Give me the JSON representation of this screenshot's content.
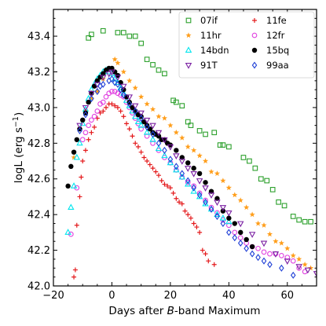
{
  "chart_data": {
    "type": "scatter",
    "title": "",
    "xlabel_prefix": "Days after ",
    "xlabel_italic": "B",
    "xlabel_suffix": "-band Maximum",
    "ylabel_main": "logL (erg s",
    "ylabel_sup": "−1",
    "ylabel_close": ")",
    "xlim": [
      -20,
      70
    ],
    "ylim": [
      42.0,
      43.55
    ],
    "xticks": [
      -20,
      0,
      20,
      40,
      60
    ],
    "xtick_labels": [
      "−20",
      "0",
      "20",
      "40",
      "60"
    ],
    "yticks": [
      42.0,
      42.2,
      42.4,
      42.6,
      42.8,
      43.0,
      43.2,
      43.4
    ],
    "ytick_labels": [
      "42.0",
      "42.2",
      "42.4",
      "42.6",
      "42.8",
      "43.0",
      "43.2",
      "43.4"
    ],
    "legend_position": "top-right",
    "grid": false,
    "series": [
      {
        "name": "07if",
        "color": "#2ca02c",
        "marker": "square-open",
        "x": [
          -8,
          -7,
          -3,
          2,
          4,
          6,
          8,
          10,
          12,
          14,
          16,
          18,
          21,
          22,
          24,
          26,
          27,
          30,
          32,
          35,
          37,
          38,
          40,
          45,
          47,
          49,
          51,
          53,
          55,
          57,
          59,
          62,
          64,
          66,
          68
        ],
        "y": [
          43.39,
          43.41,
          43.43,
          43.42,
          43.42,
          43.4,
          43.4,
          43.36,
          43.27,
          43.24,
          43.21,
          43.19,
          43.04,
          43.03,
          43.01,
          42.92,
          42.9,
          42.87,
          42.85,
          42.86,
          42.79,
          42.79,
          42.78,
          42.72,
          42.7,
          42.66,
          42.6,
          42.59,
          42.54,
          42.47,
          42.45,
          42.39,
          42.37,
          42.36,
          42.36
        ]
      },
      {
        "name": "11fe",
        "color": "#e41a1c",
        "marker": "plus",
        "x": [
          -13,
          -12.5,
          -12,
          -11,
          -10.5,
          -10,
          -9,
          -8,
          -7,
          -6,
          -5,
          -4,
          -3,
          -2,
          -1,
          0,
          1,
          2,
          3,
          4,
          5,
          6,
          7,
          8,
          9,
          10,
          11,
          12,
          13,
          14,
          15,
          16,
          17,
          18,
          19,
          20,
          21,
          22,
          23,
          24,
          25,
          26,
          27,
          28,
          29,
          30,
          31,
          32,
          33,
          35
        ],
        "y": [
          42.05,
          42.09,
          42.34,
          42.5,
          42.61,
          42.7,
          42.76,
          42.82,
          42.86,
          42.89,
          42.94,
          42.97,
          42.98,
          43.0,
          43.02,
          43.02,
          43.01,
          43.0,
          42.98,
          42.95,
          42.91,
          42.88,
          42.84,
          42.8,
          42.78,
          42.75,
          42.72,
          42.7,
          42.68,
          42.66,
          42.64,
          42.62,
          42.59,
          42.57,
          42.56,
          42.55,
          42.52,
          42.49,
          42.47,
          42.46,
          42.42,
          42.4,
          42.38,
          42.35,
          42.33,
          42.3,
          42.2,
          42.18,
          42.14,
          42.12
        ]
      },
      {
        "name": "11hr",
        "color": "#ff9e1b",
        "marker": "star",
        "x": [
          -13,
          -11,
          -9,
          -7,
          -5,
          -3,
          -1,
          1,
          2,
          4,
          6,
          8,
          10,
          12,
          14,
          16,
          18,
          20,
          22,
          24,
          26,
          28,
          30,
          32,
          34,
          36,
          38,
          40,
          42,
          44,
          46,
          48,
          50,
          52,
          54,
          56,
          58,
          60,
          62,
          64,
          66,
          68
        ],
        "y": [
          42.72,
          42.88,
          42.98,
          43.05,
          43.09,
          43.16,
          43.21,
          43.27,
          43.25,
          43.2,
          43.15,
          43.11,
          43.06,
          43.02,
          42.99,
          42.95,
          42.94,
          42.9,
          42.86,
          42.83,
          42.78,
          42.76,
          42.73,
          42.7,
          42.64,
          42.63,
          42.59,
          42.55,
          42.51,
          42.48,
          42.44,
          42.4,
          42.35,
          42.34,
          42.29,
          42.25,
          42.24,
          42.21,
          42.17,
          42.15,
          42.12,
          42.1
        ]
      },
      {
        "name": "12fr",
        "color": "#e040e0",
        "marker": "circle-open",
        "x": [
          -14,
          -12,
          -10,
          -9,
          -8,
          -7,
          -6,
          -5,
          -4,
          -3,
          -2,
          -1,
          0,
          1,
          2,
          3,
          4,
          5,
          6,
          7,
          8,
          9,
          10,
          12,
          14,
          16,
          18,
          20,
          22,
          24,
          26,
          28,
          30,
          32,
          34,
          36,
          38,
          40,
          42,
          44,
          46,
          48,
          50,
          52,
          54,
          56,
          58,
          60,
          62,
          64,
          66
        ],
        "y": [
          42.29,
          42.55,
          42.82,
          42.86,
          42.9,
          42.93,
          42.95,
          42.98,
          43.02,
          43.03,
          43.06,
          43.08,
          43.09,
          43.09,
          43.08,
          43.07,
          43.06,
          43.03,
          43.0,
          42.97,
          42.94,
          42.91,
          42.88,
          42.84,
          42.8,
          42.76,
          42.72,
          42.69,
          42.65,
          42.61,
          42.58,
          42.56,
          42.52,
          42.48,
          42.44,
          42.41,
          42.37,
          42.34,
          42.3,
          42.27,
          42.24,
          42.22,
          42.21,
          42.19,
          42.18,
          42.18,
          42.17,
          42.16,
          42.14,
          42.1,
          42.08
        ]
      },
      {
        "name": "14bdn",
        "color": "#00e5ee",
        "marker": "triangle-up-open",
        "x": [
          -15,
          -14,
          -13,
          -12,
          -11,
          -10,
          -9,
          -8,
          -7,
          -6,
          -5,
          -4,
          -3,
          -2,
          -1,
          0,
          1,
          2,
          3,
          4,
          5,
          6,
          7,
          8,
          9,
          10,
          12,
          14,
          16,
          18,
          20,
          22,
          24,
          26,
          28,
          30,
          32,
          34,
          36,
          38,
          40
        ],
        "y": [
          42.3,
          42.44,
          42.56,
          42.72,
          42.8,
          42.91,
          42.99,
          43.05,
          43.1,
          43.13,
          43.16,
          43.18,
          43.2,
          43.21,
          43.2,
          43.19,
          43.16,
          43.14,
          43.11,
          43.08,
          43.04,
          43.01,
          42.98,
          42.95,
          42.92,
          42.9,
          42.86,
          42.82,
          42.77,
          42.73,
          42.69,
          42.65,
          42.61,
          42.57,
          42.53,
          42.5,
          42.46,
          42.43,
          42.4,
          42.38,
          42.36
        ]
      },
      {
        "name": "15bq",
        "color": "#000000",
        "marker": "circle-filled",
        "x": [
          -15,
          -14,
          -13,
          -12,
          -11,
          -10,
          -9,
          -8,
          -7,
          -6,
          -5,
          -4,
          -3,
          -2,
          -1,
          0,
          1,
          2,
          3,
          4,
          5,
          6,
          7,
          8,
          9,
          10,
          11,
          12,
          13,
          14,
          15,
          16,
          17,
          18,
          19,
          20,
          22,
          24,
          26,
          28,
          30,
          32,
          34,
          36,
          38,
          40,
          42,
          44,
          46,
          48
        ],
        "y": [
          42.56,
          42.67,
          42.75,
          42.82,
          42.88,
          42.93,
          42.97,
          43.03,
          43.08,
          43.12,
          43.15,
          43.17,
          43.19,
          43.21,
          43.22,
          43.22,
          43.2,
          43.18,
          43.14,
          43.1,
          43.06,
          43.03,
          43.0,
          42.98,
          42.96,
          42.95,
          42.92,
          42.9,
          42.88,
          42.86,
          42.85,
          42.84,
          42.82,
          42.82,
          42.8,
          42.79,
          42.76,
          42.72,
          42.69,
          42.66,
          42.63,
          42.58,
          42.53,
          42.49,
          42.42,
          42.38,
          42.35,
          42.3,
          42.26,
          42.22
        ]
      },
      {
        "name": "91T",
        "color": "#7a1fa2",
        "marker": "triangle-down-open",
        "x": [
          -11,
          -9,
          -7,
          -5,
          -3,
          -1,
          0,
          2,
          4,
          6,
          8,
          10,
          12,
          14,
          16,
          18,
          20,
          22,
          24,
          26,
          28,
          30,
          32,
          34,
          36,
          38,
          40,
          44,
          48,
          52,
          56,
          60,
          64,
          67,
          70
        ],
        "y": [
          42.9,
          43.0,
          43.08,
          43.13,
          43.17,
          43.19,
          43.2,
          43.17,
          43.12,
          43.06,
          43.01,
          42.97,
          42.93,
          42.9,
          42.86,
          42.82,
          42.78,
          42.73,
          42.7,
          42.66,
          42.63,
          42.59,
          42.55,
          42.51,
          42.47,
          42.44,
          42.41,
          42.35,
          42.29,
          42.24,
          42.18,
          42.14,
          42.11,
          42.09,
          42.07
        ]
      },
      {
        "name": "99aa",
        "color": "#1f3fd6",
        "marker": "diamond-open",
        "x": [
          -11,
          -9,
          -7,
          -5,
          -4,
          -3,
          -1,
          0,
          1,
          2,
          3,
          4,
          6,
          8,
          10,
          12,
          14,
          16,
          18,
          20,
          22,
          24,
          26,
          28,
          30,
          32,
          34,
          36,
          38,
          40,
          42,
          44,
          46,
          48,
          50,
          52,
          54,
          58,
          62
        ],
        "y": [
          42.87,
          42.96,
          43.05,
          43.09,
          43.12,
          43.13,
          43.15,
          43.16,
          43.14,
          43.13,
          43.1,
          43.07,
          43.02,
          42.98,
          42.94,
          42.89,
          42.85,
          42.8,
          42.76,
          42.71,
          42.67,
          42.63,
          42.59,
          42.55,
          42.51,
          42.47,
          42.43,
          42.39,
          42.35,
          42.3,
          42.27,
          42.24,
          42.21,
          42.18,
          42.16,
          42.14,
          42.12,
          42.1,
          42.06
        ]
      }
    ]
  }
}
